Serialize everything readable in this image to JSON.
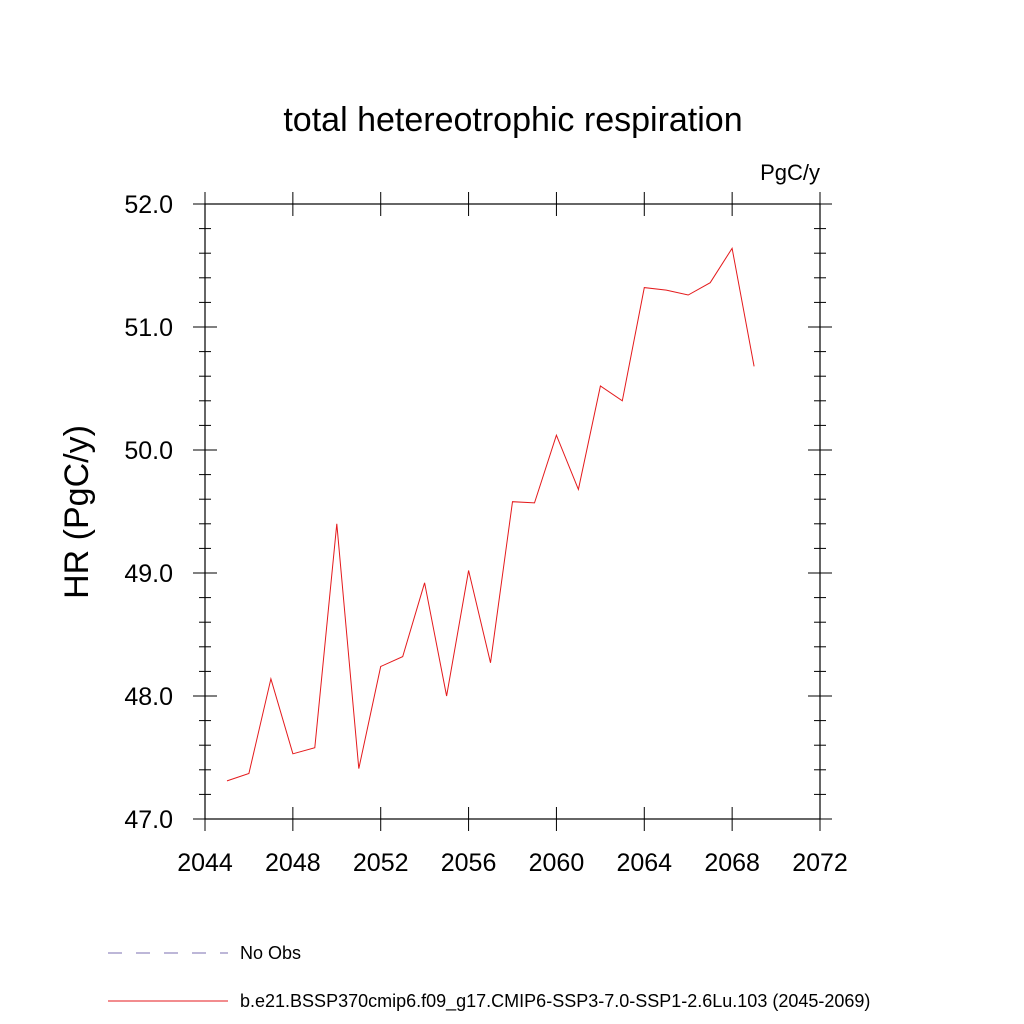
{
  "chart_data": {
    "type": "line",
    "title": "total hetereotrophic respiration",
    "units_label": "PgC/y",
    "xlabel": "",
    "ylabel": "HR  (PgC/y)",
    "xlim": [
      2044,
      2072
    ],
    "ylim": [
      47.0,
      52.0
    ],
    "x_ticks": [
      2044,
      2048,
      2052,
      2056,
      2060,
      2064,
      2068,
      2072
    ],
    "x_tick_labels": [
      "2044",
      "2048",
      "2052",
      "2056",
      "2060",
      "2064",
      "2068",
      "2072"
    ],
    "y_ticks": [
      47.0,
      48.0,
      49.0,
      50.0,
      51.0,
      52.0
    ],
    "y_tick_labels": [
      "47.0",
      "48.0",
      "49.0",
      "50.0",
      "51.0",
      "52.0"
    ],
    "grid": false,
    "legend_position": "bottom",
    "series": [
      {
        "name": "b.e21.BSSP370cmip6.f09_g17.CMIP6-SSP3-7.0-SSP1-2.6Lu.103 (2045-2069)",
        "color": "#e41a1c",
        "style": "solid",
        "x": [
          2045,
          2046,
          2047,
          2048,
          2049,
          2050,
          2051,
          2052,
          2053,
          2054,
          2055,
          2056,
          2057,
          2058,
          2059,
          2060,
          2061,
          2062,
          2063,
          2064,
          2065,
          2066,
          2067,
          2068,
          2069
        ],
        "values": [
          47.31,
          47.37,
          48.14,
          47.53,
          47.58,
          49.4,
          47.41,
          48.24,
          48.32,
          48.92,
          48.0,
          49.02,
          48.27,
          49.58,
          49.57,
          50.12,
          49.68,
          50.52,
          50.4,
          51.32,
          51.3,
          51.26,
          51.36,
          51.64,
          50.68
        ]
      }
    ],
    "legend": [
      {
        "label": "No Obs",
        "color": "#7b6fb2",
        "style": "dashed"
      },
      {
        "label": "b.e21.BSSP370cmip6.f09_g17.CMIP6-SSP3-7.0-SSP1-2.6Lu.103 (2045-2069)",
        "color": "#e41a1c",
        "style": "solid"
      }
    ]
  }
}
